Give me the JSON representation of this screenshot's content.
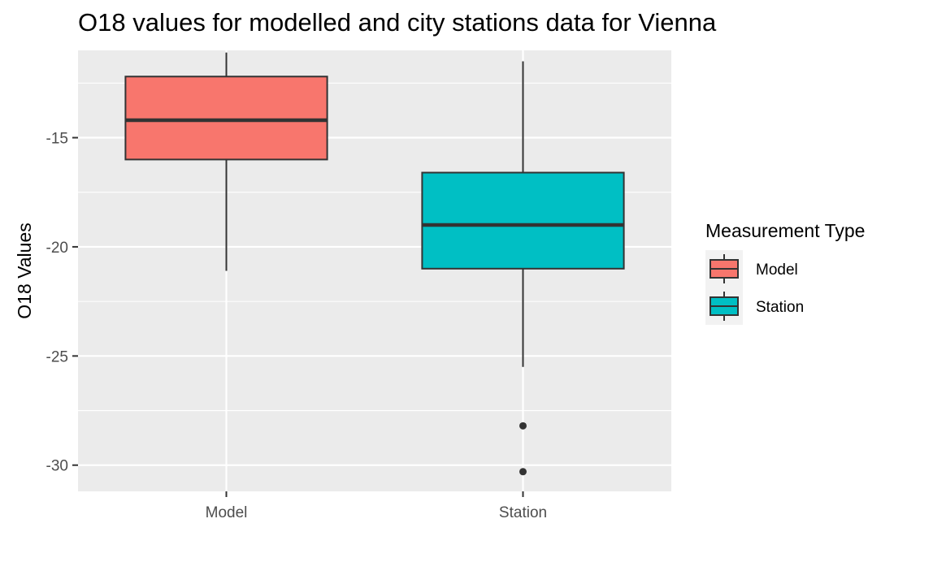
{
  "chart_data": {
    "type": "box",
    "title": "O18 values for modelled and city stations data for Vienna",
    "xlabel": "",
    "ylabel": "O18 Values",
    "ylim": [
      -31.2,
      -11.0
    ],
    "yticks": [
      -15,
      -20,
      -25,
      -30
    ],
    "ytick_labels": [
      "-15",
      "-20",
      "-25",
      "-30"
    ],
    "categories": [
      "Model",
      "Station"
    ],
    "legend": {
      "title": "Measurement Type",
      "placement": "right",
      "entries": [
        "Model",
        "Station"
      ]
    },
    "series": [
      {
        "name": "Model",
        "color": "#F8766D",
        "whisker_low": -21.1,
        "q1": -16.0,
        "median": -14.2,
        "q3": -12.2,
        "whisker_high": -11.1,
        "outliers": []
      },
      {
        "name": "Station",
        "color": "#00BFC4",
        "whisker_low": -25.5,
        "q1": -21.0,
        "median": -19.0,
        "q3": -16.6,
        "whisker_high": -11.5,
        "outliers": [
          -28.2,
          -30.3
        ]
      }
    ],
    "grid": true
  }
}
